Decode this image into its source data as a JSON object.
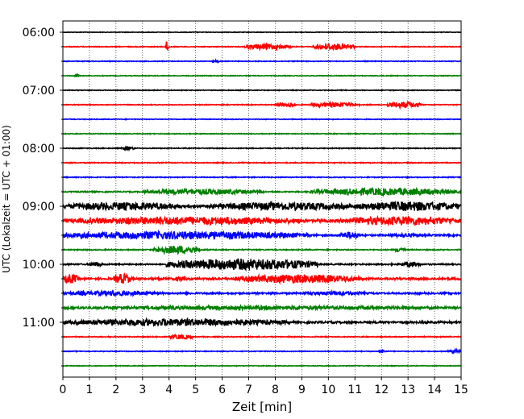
{
  "chart_data": {
    "type": "line",
    "title": "",
    "xlabel": "Zeit  [min]",
    "ylabel": "UTC (Lokalzeit = UTC + 01:00)",
    "xlim": [
      0,
      15
    ],
    "x_ticks": [
      0,
      1,
      2,
      3,
      4,
      5,
      6,
      7,
      8,
      9,
      10,
      11,
      12,
      13,
      14,
      15
    ],
    "x_tick_labels": [
      "0",
      "1",
      "2",
      "3",
      "4",
      "5",
      "6",
      "7",
      "8",
      "9",
      "10",
      "11",
      "12",
      "13",
      "14",
      "15"
    ],
    "y_tick_labels": [
      "06:00",
      "07:00",
      "08:00",
      "09:00",
      "10:00",
      "11:00"
    ],
    "grid": "vertical dotted at each minute",
    "colors": {
      "black": "#000000",
      "red": "#ff0000",
      "blue": "#0000ff",
      "green": "#008000"
    },
    "traces": [
      {
        "start": "06:00",
        "color": "black",
        "noise": 0.35,
        "events": []
      },
      {
        "start": "06:15",
        "color": "red",
        "noise": 0.45,
        "events": [
          [
            3.85,
            4.0,
            7
          ],
          [
            6.8,
            8.6,
            3.5
          ],
          [
            9.4,
            11.0,
            4
          ]
        ]
      },
      {
        "start": "06:30",
        "color": "blue",
        "noise": 0.4,
        "events": [
          [
            5.6,
            5.9,
            2
          ]
        ]
      },
      {
        "start": "06:45",
        "color": "green",
        "noise": 0.4,
        "events": [
          [
            0.45,
            0.6,
            2.5
          ]
        ]
      },
      {
        "start": "07:00",
        "color": "black",
        "noise": 0.4,
        "events": []
      },
      {
        "start": "07:15",
        "color": "red",
        "noise": 0.45,
        "events": [
          [
            8.0,
            8.8,
            2.5
          ],
          [
            9.3,
            11.2,
            3
          ],
          [
            12.2,
            13.5,
            4
          ]
        ]
      },
      {
        "start": "07:30",
        "color": "blue",
        "noise": 0.4,
        "events": []
      },
      {
        "start": "07:45",
        "color": "green",
        "noise": 0.45,
        "events": []
      },
      {
        "start": "08:00",
        "color": "black",
        "noise": 0.5,
        "events": [
          [
            2.2,
            2.7,
            2
          ]
        ]
      },
      {
        "start": "08:15",
        "color": "red",
        "noise": 0.5,
        "events": []
      },
      {
        "start": "08:30",
        "color": "blue",
        "noise": 0.55,
        "events": []
      },
      {
        "start": "08:45",
        "color": "green",
        "noise": 0.7,
        "events": [
          [
            3.0,
            7.6,
            3.5
          ],
          [
            9.3,
            15.0,
            4.5
          ]
        ]
      },
      {
        "start": "09:00",
        "color": "black",
        "noise": 1.6,
        "events": [
          [
            0.0,
            4.5,
            5
          ],
          [
            5.5,
            11.0,
            5
          ],
          [
            11.0,
            15.0,
            6
          ]
        ]
      },
      {
        "start": "09:15",
        "color": "red",
        "noise": 1.5,
        "events": [
          [
            0.0,
            9.2,
            5
          ],
          [
            10.5,
            15.0,
            5.5
          ]
        ]
      },
      {
        "start": "09:30",
        "color": "blue",
        "noise": 1.0,
        "events": [
          [
            0.0,
            9.3,
            5
          ],
          [
            10.4,
            11.2,
            4.5
          ],
          [
            12.2,
            13.5,
            2.5
          ]
        ]
      },
      {
        "start": "09:45",
        "color": "green",
        "noise": 0.6,
        "events": [
          [
            3.4,
            5.2,
            5
          ],
          [
            12.5,
            12.9,
            3
          ]
        ]
      },
      {
        "start": "10:00",
        "color": "black",
        "noise": 0.8,
        "events": [
          [
            1.0,
            1.5,
            3
          ],
          [
            3.9,
            9.6,
            7
          ],
          [
            12.7,
            13.5,
            3.5
          ]
        ]
      },
      {
        "start": "10:15",
        "color": "red",
        "noise": 1.2,
        "events": [
          [
            0.0,
            0.6,
            6
          ],
          [
            1.9,
            2.6,
            6.5
          ],
          [
            4.2,
            4.7,
            3
          ],
          [
            6.5,
            11.2,
            5.5
          ]
        ]
      },
      {
        "start": "10:30",
        "color": "blue",
        "noise": 1.0,
        "events": [
          [
            0.0,
            3.8,
            3
          ],
          [
            9.0,
            11.5,
            2.5
          ]
        ]
      },
      {
        "start": "10:45",
        "color": "green",
        "noise": 1.2,
        "events": [
          [
            0.0,
            15.0,
            2.5
          ]
        ]
      },
      {
        "start": "11:00",
        "color": "black",
        "noise": 1.2,
        "events": [
          [
            0.0,
            8.6,
            4.5
          ]
        ]
      },
      {
        "start": "11:15",
        "color": "red",
        "noise": 0.5,
        "events": [
          [
            4.0,
            4.9,
            3
          ]
        ]
      },
      {
        "start": "11:30",
        "color": "blue",
        "noise": 0.45,
        "events": [
          [
            11.9,
            12.2,
            2
          ],
          [
            14.5,
            15.0,
            2.5
          ]
        ]
      },
      {
        "start": "11:45",
        "color": "green",
        "noise": 0.4,
        "events": []
      }
    ]
  }
}
